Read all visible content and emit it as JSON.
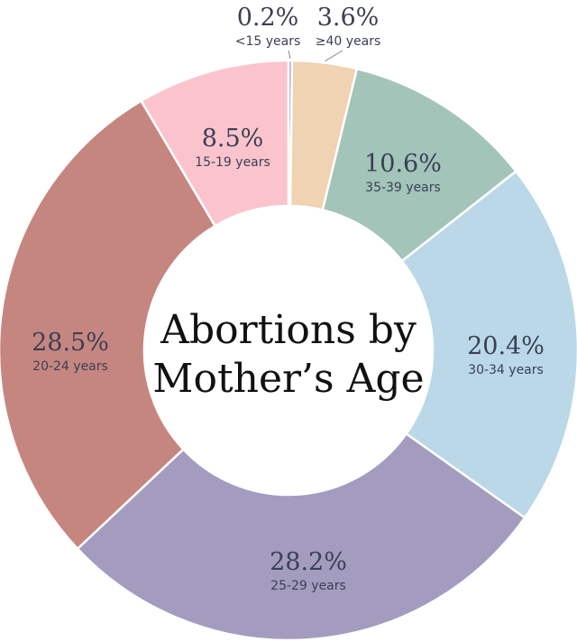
{
  "chart_data": {
    "type": "pie",
    "title": "Abortions by Mother’s Age",
    "title_lines": [
      "Abortions by",
      "Mother’s Age"
    ],
    "slices": [
      {
        "label": "<15 years",
        "value": 0.2,
        "display": "0.2%",
        "color": "#9b8fc0"
      },
      {
        "label": "≥40 years",
        "value": 3.6,
        "display": "3.6%",
        "color": "#efd3b2"
      },
      {
        "label": "35-39 years",
        "value": 10.6,
        "display": "10.6%",
        "color": "#a2c4b9"
      },
      {
        "label": "30-34 years",
        "value": 20.4,
        "display": "20.4%",
        "color": "#bad8e8"
      },
      {
        "label": "25-29 years",
        "value": 28.2,
        "display": "28.2%",
        "color": "#a39cbf"
      },
      {
        "label": "20-24 years",
        "value": 28.5,
        "display": "28.5%",
        "color": "#c68680"
      },
      {
        "label": "15-19 years",
        "value": 8.5,
        "display": "8.5%",
        "color": "#fbc4cc"
      }
    ],
    "total": 100,
    "donut": true,
    "legend": "none"
  }
}
